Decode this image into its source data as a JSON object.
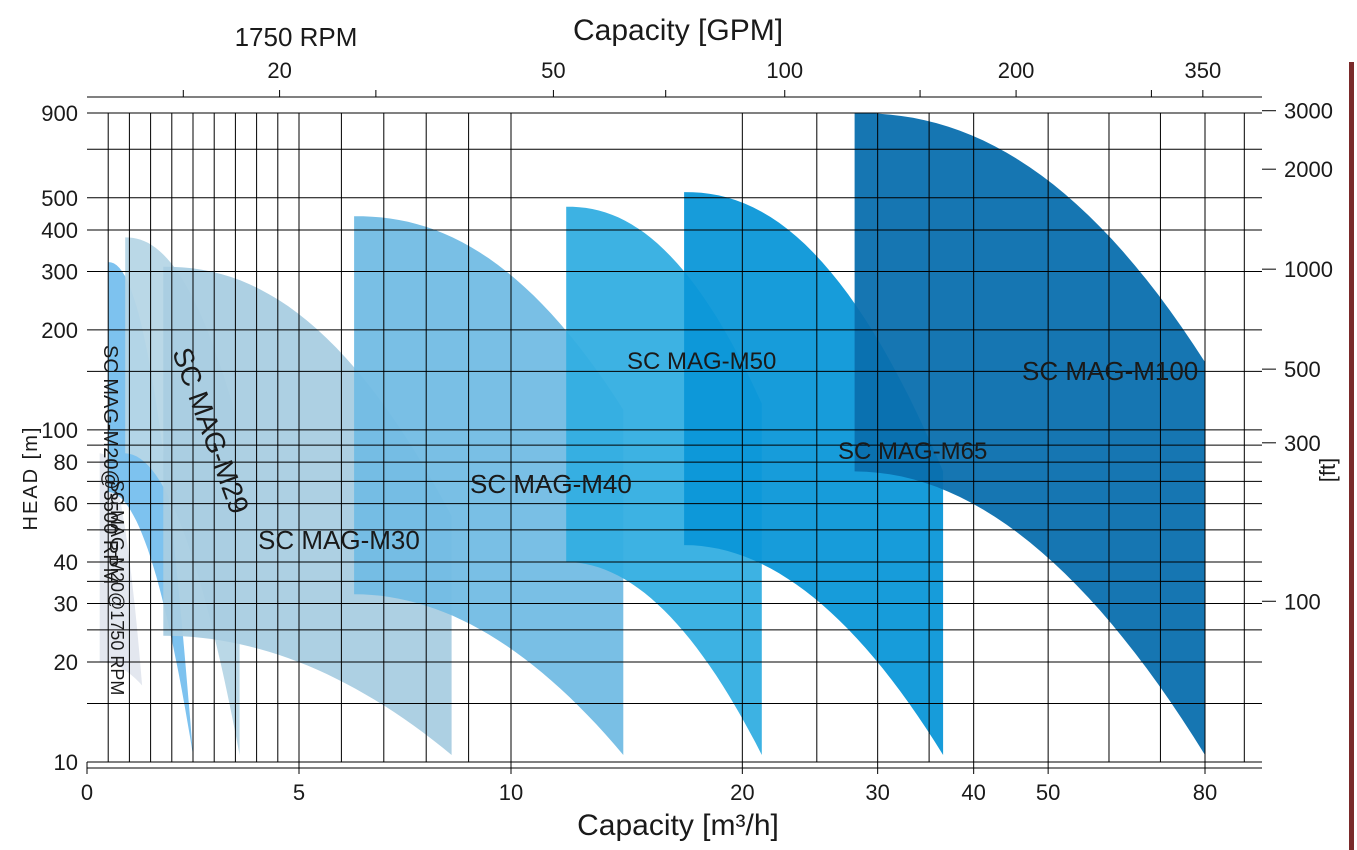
{
  "chart_data": {
    "type": "area",
    "title_top": "Capacity  [GPM]",
    "speed_label": "1750 RPM",
    "xlabel": "Capacity  [m³/h]",
    "ylabel": "HEAD [m]",
    "y2label": "[ft]",
    "x_ticks": [
      {
        "value": 0,
        "label": "0"
      },
      {
        "value": 5,
        "label": "5"
      },
      {
        "value": 10,
        "label": "10"
      },
      {
        "value": 20,
        "label": "20"
      },
      {
        "value": 30,
        "label": "30"
      },
      {
        "value": 40,
        "label": "40"
      },
      {
        "value": 50,
        "label": "50"
      },
      {
        "value": 80,
        "label": "80"
      }
    ],
    "gpm_ticks": [
      {
        "value": 20,
        "label": "20"
      },
      {
        "value": 50,
        "label": "50"
      },
      {
        "value": 100,
        "label": "100"
      },
      {
        "value": 200,
        "label": "200"
      },
      {
        "value": 350,
        "label": "350"
      }
    ],
    "y_ticks": [
      {
        "value": 10,
        "label": "10"
      },
      {
        "value": 20,
        "label": "20"
      },
      {
        "value": 30,
        "label": "30"
      },
      {
        "value": 40,
        "label": "40"
      },
      {
        "value": 60,
        "label": "60"
      },
      {
        "value": 80,
        "label": "80"
      },
      {
        "value": 100,
        "label": "100"
      },
      {
        "value": 200,
        "label": "200"
      },
      {
        "value": 300,
        "label": "300"
      },
      {
        "value": 400,
        "label": "400"
      },
      {
        "value": 500,
        "label": "500"
      },
      {
        "value": 900,
        "label": "900"
      }
    ],
    "ft_ticks": [
      {
        "value": 100,
        "label": "100"
      },
      {
        "value": 300,
        "label": "300"
      },
      {
        "value": 500,
        "label": "500"
      },
      {
        "value": 1000,
        "label": "1000"
      },
      {
        "value": 2000,
        "label": "2000"
      },
      {
        "value": 3000,
        "label": "3000"
      }
    ],
    "series": [
      {
        "name": "SC MAG-M20@1750 RPM",
        "color": "#e2e6ee",
        "q_start": 0.3,
        "q_end": 1.3,
        "h_max_start": 85,
        "h_max_end": 17,
        "h_min_start": 20,
        "h_min_end": 17
      },
      {
        "name": "SC MAG-M20@3500 RPM",
        "color": "#76bfee",
        "q_start": 0.5,
        "q_end": 2.5,
        "h_max_start": 320,
        "h_max_end": 10.5,
        "h_min_start": 65,
        "h_min_end": 10.5
      },
      {
        "name": "SC MAG-M29",
        "color": "#b6d6e6",
        "q_start": 0.9,
        "q_end": 3.6,
        "h_max_start": 380,
        "h_max_end": 100,
        "h_min_start": 85,
        "h_min_end": 10.5
      },
      {
        "name": "SC MAG-M30",
        "color": "#a9cde2",
        "q_start": 1.8,
        "q_end": 8.6,
        "h_max_start": 310,
        "h_max_end": 55,
        "h_min_start": 24,
        "h_min_end": 10.5
      },
      {
        "name": "SC MAG-M40",
        "color": "#72bce4",
        "q_start": 6.3,
        "q_end": 14.0,
        "h_max_start": 440,
        "h_max_end": 115,
        "h_min_start": 32,
        "h_min_end": 10.5
      },
      {
        "name": "SC MAG-M50",
        "color": "#33aee2",
        "q_start": 11.8,
        "q_end": 21.2,
        "h_max_start": 470,
        "h_max_end": 120,
        "h_min_start": 40,
        "h_min_end": 10.5
      },
      {
        "name": "SC MAG-M65",
        "color": "#0b97d8",
        "q_start": 16.8,
        "q_end": 36.5,
        "h_max_start": 520,
        "h_max_end": 75,
        "h_min_start": 45,
        "h_min_end": 10.5
      },
      {
        "name": "SC MAG-M100",
        "color": "#0a6fae",
        "q_start": 28.0,
        "q_end": 80,
        "h_max_start": 900,
        "h_max_end": 160,
        "h_min_start": 75,
        "h_min_end": 10.5
      }
    ],
    "grid": true
  }
}
